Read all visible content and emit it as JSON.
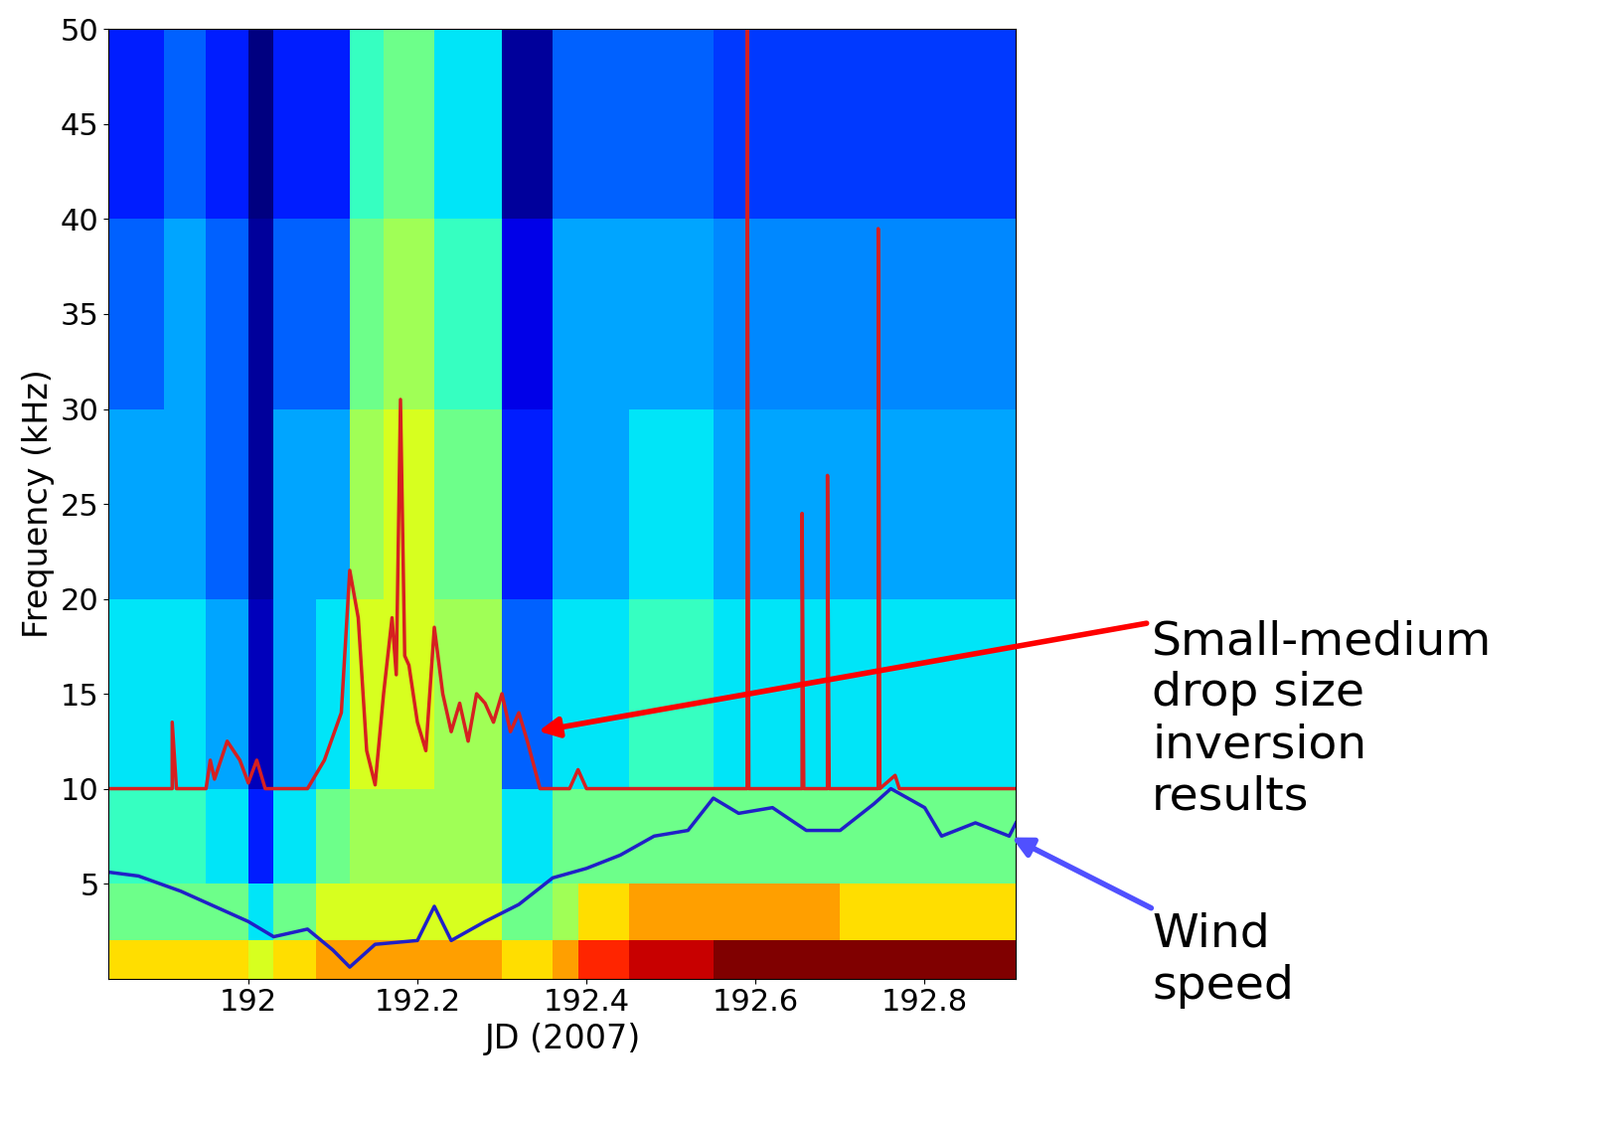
{
  "chart_data": {
    "type": "heatmap",
    "x_label": "JD (2007)",
    "y_label": "Frequency (kHz)",
    "xlim": [
      191.835,
      192.908
    ],
    "ylim": [
      0,
      50
    ],
    "xticks": [
      192,
      192.2,
      192.4,
      192.6,
      192.8
    ],
    "yticks": [
      5,
      10,
      15,
      20,
      25,
      30,
      35,
      40,
      45,
      50
    ],
    "x_edges": [
      191.835,
      191.9,
      191.95,
      192.0,
      192.03,
      192.08,
      192.12,
      192.16,
      192.22,
      192.3,
      192.36,
      192.39,
      192.45,
      192.55,
      192.7,
      192.908
    ],
    "y_edges": [
      0,
      2,
      5,
      10,
      20,
      30,
      40,
      50
    ],
    "cells": [
      [
        0.6,
        0.6,
        0.6,
        0.55,
        0.6,
        0.65,
        0.65,
        0.65,
        0.65,
        0.6,
        0.65,
        0.75,
        0.8,
        0.85,
        0.85
      ],
      [
        0.45,
        0.45,
        0.45,
        0.35,
        0.45,
        0.55,
        0.55,
        0.55,
        0.55,
        0.45,
        0.5,
        0.6,
        0.65,
        0.65,
        0.6
      ],
      [
        0.4,
        0.4,
        0.35,
        0.2,
        0.35,
        0.45,
        0.5,
        0.5,
        0.5,
        0.35,
        0.45,
        0.45,
        0.45,
        0.45,
        0.45
      ],
      [
        0.35,
        0.35,
        0.3,
        0.12,
        0.3,
        0.35,
        0.55,
        0.55,
        0.5,
        0.25,
        0.35,
        0.35,
        0.4,
        0.35,
        0.35
      ],
      [
        0.3,
        0.3,
        0.25,
        0.1,
        0.3,
        0.3,
        0.5,
        0.55,
        0.45,
        0.2,
        0.3,
        0.3,
        0.35,
        0.3,
        0.3
      ],
      [
        0.25,
        0.3,
        0.25,
        0.1,
        0.25,
        0.25,
        0.45,
        0.5,
        0.4,
        0.15,
        0.3,
        0.3,
        0.3,
        0.28,
        0.28
      ],
      [
        0.2,
        0.25,
        0.2,
        0.08,
        0.2,
        0.2,
        0.4,
        0.45,
        0.35,
        0.1,
        0.25,
        0.25,
        0.25,
        0.22,
        0.22
      ]
    ],
    "series": [
      {
        "type": "line",
        "color": "#d62020",
        "x": [
          191.835,
          191.91,
          191.91,
          191.915,
          191.95,
          191.955,
          191.96,
          191.975,
          191.99,
          192.0,
          192.01,
          192.02,
          192.07,
          192.09,
          192.11,
          192.12,
          192.13,
          192.14,
          192.15,
          192.16,
          192.17,
          192.175,
          192.18,
          192.185,
          192.19,
          192.2,
          192.21,
          192.22,
          192.23,
          192.24,
          192.25,
          192.26,
          192.27,
          192.28,
          192.29,
          192.3,
          192.31,
          192.32,
          192.33,
          192.345,
          192.38,
          192.39,
          192.4,
          192.59,
          192.59,
          192.592,
          192.655,
          192.655,
          192.657,
          192.685,
          192.685,
          192.687,
          192.745,
          192.745,
          192.747,
          192.765,
          192.77,
          192.908
        ],
        "values": [
          10,
          10,
          13.5,
          10,
          10,
          11.5,
          10.5,
          12.5,
          11.5,
          10.3,
          11.5,
          10,
          10,
          11.5,
          14,
          21.5,
          19,
          12,
          10.2,
          15,
          19,
          16,
          30.5,
          17,
          16.5,
          13.5,
          12,
          18.5,
          15,
          13,
          14.5,
          12.5,
          15,
          14.5,
          13.5,
          15,
          13,
          14,
          12.5,
          10,
          10,
          11,
          10,
          10,
          50,
          10,
          10,
          24.5,
          10,
          10,
          26.5,
          10,
          10,
          39.5,
          10,
          10.7,
          10,
          10
        ]
      },
      {
        "type": "line",
        "color": "#2020c8",
        "x": [
          191.835,
          191.87,
          191.92,
          191.96,
          192.0,
          192.03,
          192.07,
          192.1,
          192.12,
          192.15,
          192.2,
          192.22,
          192.24,
          192.28,
          192.32,
          192.36,
          192.4,
          192.44,
          192.48,
          192.52,
          192.55,
          192.58,
          192.62,
          192.66,
          192.7,
          192.74,
          192.76,
          192.8,
          192.82,
          192.86,
          192.9,
          192.908
        ],
        "values": [
          5.6,
          5.4,
          4.6,
          3.8,
          3.0,
          2.2,
          2.6,
          1.5,
          0.6,
          1.8,
          2.0,
          3.8,
          2.0,
          3.0,
          3.9,
          5.3,
          5.8,
          6.5,
          7.5,
          7.8,
          9.5,
          8.7,
          9.0,
          7.8,
          7.8,
          9.2,
          10.0,
          9.0,
          7.5,
          8.2,
          7.5,
          8.2
        ]
      }
    ],
    "annotations": [
      {
        "text": "Small-medium\ndrop size\ninversion\nresults",
        "color": "#ff0000",
        "x": 192.34,
        "y": 13
      },
      {
        "text": "Wind\nspeed",
        "color": "#5050ff",
        "x": 192.9,
        "y": 7.5
      }
    ]
  }
}
